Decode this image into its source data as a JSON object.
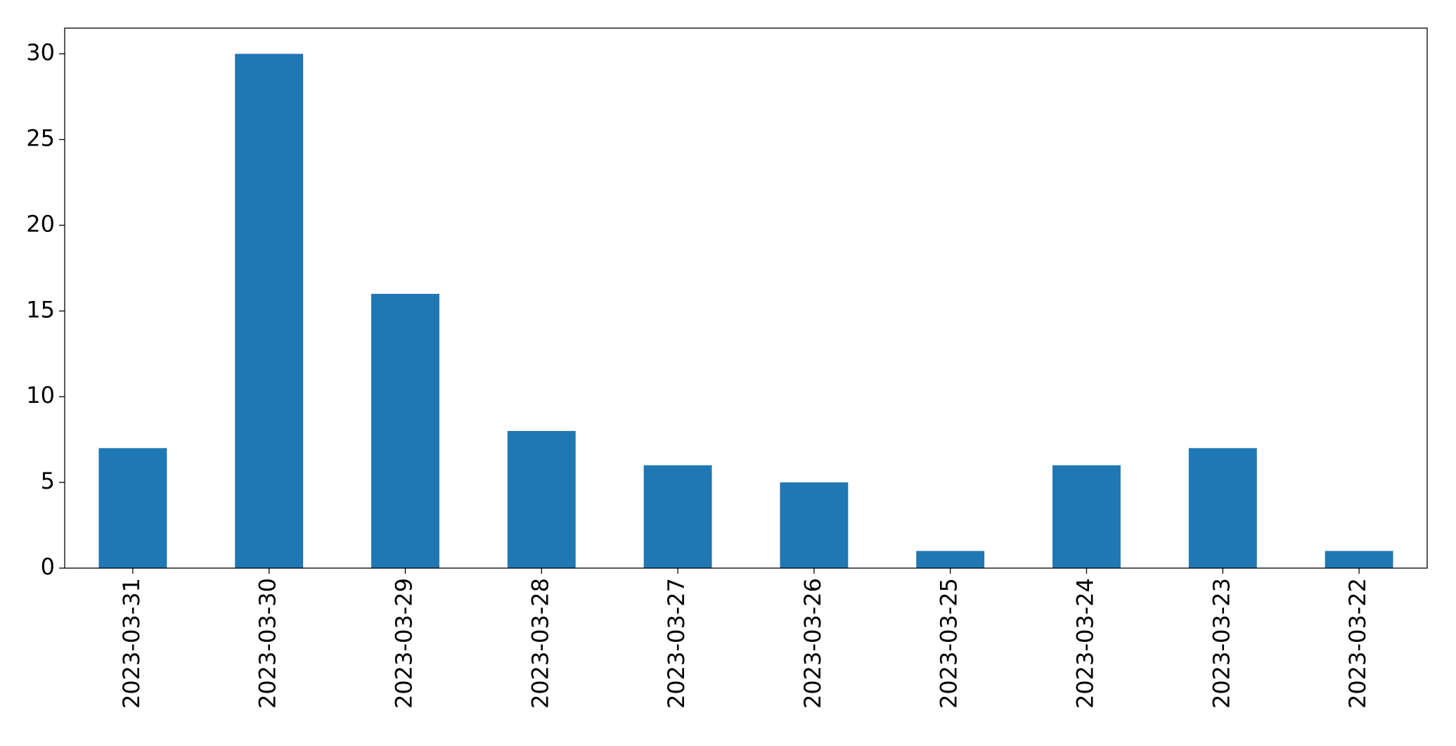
{
  "chart_data": {
    "type": "bar",
    "categories": [
      "2023-03-31",
      "2023-03-30",
      "2023-03-29",
      "2023-03-28",
      "2023-03-27",
      "2023-03-26",
      "2023-03-25",
      "2023-03-24",
      "2023-03-23",
      "2023-03-22"
    ],
    "values": [
      7,
      30,
      16,
      8,
      6,
      5,
      1,
      6,
      7,
      1
    ],
    "color": "#1f77b4",
    "ylim": [
      0,
      31.5
    ],
    "yticks": [
      0,
      5,
      10,
      15,
      20,
      25,
      30
    ],
    "grid": false
  }
}
